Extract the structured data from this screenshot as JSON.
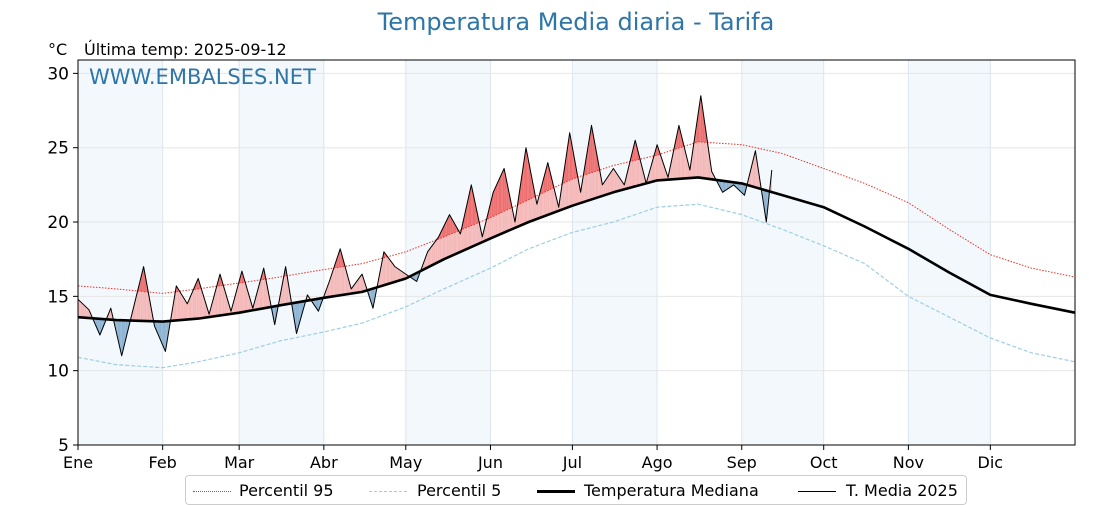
{
  "chart_data": {
    "type": "line",
    "title": "Temperatura Media diaria - Tarifa",
    "ylabel": "°C",
    "subtitle": "Última temp: 2025-09-12",
    "watermark": "WWW.EMBALSES.NET",
    "ylim": [
      5,
      30.9
    ],
    "yticks": [
      5,
      10,
      15,
      20,
      25,
      30
    ],
    "xlim": [
      1,
      366
    ],
    "months": [
      {
        "label": "Ene",
        "day": 1
      },
      {
        "label": "Feb",
        "day": 32
      },
      {
        "label": "Mar",
        "day": 60
      },
      {
        "label": "Abr",
        "day": 91
      },
      {
        "label": "May",
        "day": 121
      },
      {
        "label": "Jun",
        "day": 152
      },
      {
        "label": "Jul",
        "day": 182
      },
      {
        "label": "Ago",
        "day": 213
      },
      {
        "label": "Sep",
        "day": 244
      },
      {
        "label": "Oct",
        "day": 274
      },
      {
        "label": "Nov",
        "day": 305
      },
      {
        "label": "Dic",
        "day": 335
      }
    ],
    "grid": true,
    "legend_position": "bottom",
    "series": [
      {
        "name": "Percentil 95",
        "style": "dotted",
        "color": "#e8312b",
        "x": [
          1,
          15,
          32,
          45,
          60,
          75,
          91,
          105,
          121,
          135,
          152,
          166,
          182,
          197,
          213,
          228,
          244,
          259,
          274,
          289,
          305,
          320,
          335,
          350,
          366
        ],
        "y": [
          15.7,
          15.5,
          15.2,
          15.5,
          15.9,
          16.3,
          16.8,
          17.2,
          18.0,
          19.0,
          20.3,
          21.5,
          22.9,
          23.8,
          24.5,
          25.4,
          25.2,
          24.6,
          23.6,
          22.6,
          21.3,
          19.5,
          17.8,
          16.9,
          16.3
        ]
      },
      {
        "name": "Percentil 5",
        "style": "dashed",
        "color": "#9fcfe0",
        "x": [
          1,
          15,
          32,
          45,
          60,
          75,
          91,
          105,
          121,
          135,
          152,
          166,
          182,
          197,
          213,
          228,
          244,
          259,
          274,
          289,
          305,
          320,
          335,
          350,
          366
        ],
        "y": [
          10.9,
          10.4,
          10.2,
          10.6,
          11.2,
          12.0,
          12.6,
          13.2,
          14.3,
          15.5,
          16.9,
          18.2,
          19.3,
          20.0,
          21.0,
          21.2,
          20.5,
          19.5,
          18.4,
          17.2,
          15.0,
          13.6,
          12.2,
          11.2,
          10.6
        ]
      },
      {
        "name": "Temperatura Mediana",
        "style": "solid-thick",
        "color": "#000000",
        "x": [
          1,
          15,
          32,
          45,
          60,
          75,
          91,
          105,
          121,
          135,
          152,
          166,
          182,
          197,
          213,
          228,
          244,
          259,
          274,
          289,
          305,
          320,
          335,
          350,
          366
        ],
        "y": [
          13.6,
          13.4,
          13.3,
          13.5,
          13.9,
          14.4,
          14.9,
          15.3,
          16.2,
          17.5,
          18.9,
          20.0,
          21.1,
          22.0,
          22.8,
          23.0,
          22.6,
          21.8,
          21.0,
          19.7,
          18.2,
          16.6,
          15.1,
          14.5,
          13.9
        ]
      },
      {
        "name": "T. Media 2025",
        "style": "solid-thin",
        "color": "#000000",
        "x": [
          1,
          5,
          9,
          13,
          17,
          21,
          25,
          29,
          33,
          37,
          41,
          45,
          49,
          53,
          57,
          61,
          65,
          69,
          73,
          77,
          81,
          85,
          89,
          93,
          97,
          101,
          105,
          109,
          113,
          117,
          121,
          125,
          129,
          133,
          137,
          141,
          145,
          149,
          153,
          157,
          161,
          165,
          169,
          173,
          177,
          181,
          185,
          189,
          193,
          197,
          201,
          205,
          209,
          213,
          217,
          221,
          225,
          229,
          233,
          237,
          241,
          245,
          249,
          253,
          255
        ],
        "y": [
          14.8,
          14.1,
          12.4,
          14.2,
          11.0,
          14.0,
          17.0,
          13.0,
          11.3,
          15.7,
          14.5,
          16.2,
          13.8,
          16.5,
          14.0,
          16.7,
          14.2,
          16.9,
          13.1,
          17.0,
          12.5,
          15.1,
          14.0,
          16.0,
          18.2,
          15.5,
          16.5,
          14.2,
          18.0,
          17.0,
          16.5,
          16.0,
          18.0,
          19.0,
          20.5,
          19.2,
          22.5,
          19.0,
          22.0,
          23.6,
          20.0,
          25.0,
          21.2,
          24.0,
          21.0,
          26.0,
          22.0,
          26.5,
          22.5,
          23.6,
          22.5,
          25.5,
          22.6,
          25.2,
          23.0,
          26.5,
          23.5,
          28.5,
          23.4,
          22.0,
          22.5,
          21.8,
          24.8,
          20.0,
          23.5
        ]
      }
    ]
  },
  "legend": {
    "items": [
      "Percentil 95",
      "Percentil 5",
      "Temperatura Mediana",
      "T. Media 2025"
    ]
  }
}
